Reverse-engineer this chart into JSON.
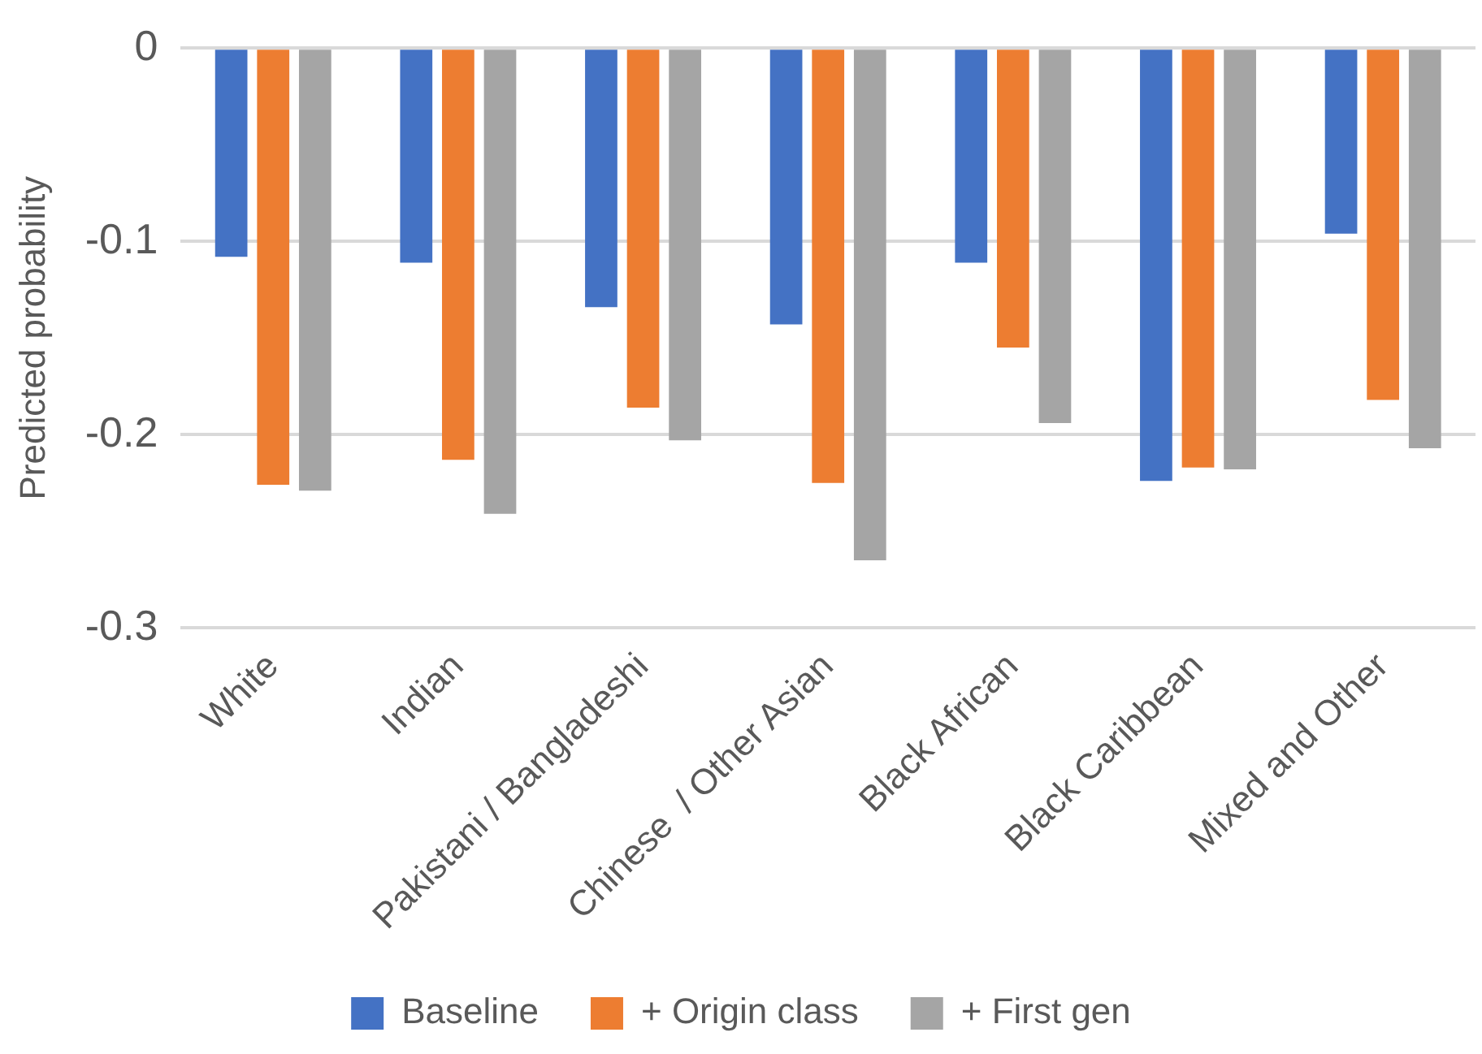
{
  "chart_data": {
    "type": "bar",
    "ylabel": "Predicted probability",
    "categories": [
      "White",
      "Indian",
      "Pakistani / Bangladeshi",
      "Chinese  / Other Asian",
      "Black African",
      "Black Caribbean",
      "Mixed and Other"
    ],
    "series": [
      {
        "name": "Baseline",
        "color": "#4472c4",
        "values": [
          -0.108,
          -0.111,
          -0.134,
          -0.143,
          -0.111,
          -0.224,
          -0.096
        ]
      },
      {
        "name": "+ Origin class",
        "color": "#ed7d31",
        "values": [
          -0.226,
          -0.213,
          -0.186,
          -0.225,
          -0.155,
          -0.217,
          -0.182
        ]
      },
      {
        "name": "+ First gen",
        "color": "#a5a5a5",
        "values": [
          -0.229,
          -0.241,
          -0.203,
          -0.265,
          -0.194,
          -0.218,
          -0.207
        ]
      }
    ],
    "ylim": [
      -0.3,
      0
    ],
    "yticks": [
      -0.3,
      -0.2,
      -0.1,
      0
    ],
    "grid": "y",
    "legend": "bottom"
  }
}
